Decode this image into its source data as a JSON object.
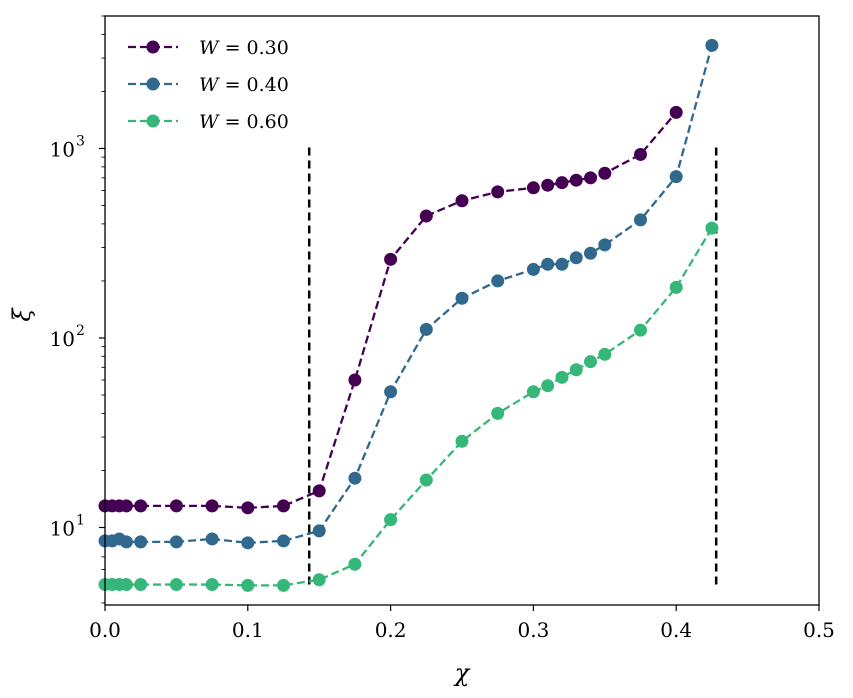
{
  "chart_data": {
    "type": "line",
    "xlabel": "χ",
    "ylabel": "ξ",
    "xlim": [
      0.0,
      0.5
    ],
    "ylim": [
      3.9,
      5000
    ],
    "yscale": "log",
    "grid": false,
    "legend_position": "top-left",
    "xticks": [
      {
        "value": 0.0,
        "label": "0.0"
      },
      {
        "value": 0.1,
        "label": "0.1"
      },
      {
        "value": 0.2,
        "label": "0.2"
      },
      {
        "value": 0.3,
        "label": "0.3"
      },
      {
        "value": 0.4,
        "label": "0.4"
      },
      {
        "value": 0.5,
        "label": "0.5"
      }
    ],
    "yticks": [
      {
        "value": 10,
        "base": "10",
        "exp": "1"
      },
      {
        "value": 100,
        "base": "10",
        "exp": "2"
      },
      {
        "value": 1000,
        "base": "10",
        "exp": "3"
      }
    ],
    "series": [
      {
        "name": "W = 0.30",
        "name_var": "W",
        "name_rest": " = 0.30",
        "color": "#440154",
        "x": [
          0.0,
          0.005,
          0.01,
          0.015,
          0.025,
          0.05,
          0.075,
          0.1,
          0.125,
          0.15,
          0.175,
          0.2,
          0.225,
          0.25,
          0.275,
          0.3,
          0.31,
          0.32,
          0.33,
          0.34,
          0.35,
          0.375,
          0.4
        ],
        "values": [
          13,
          13,
          13,
          13,
          13,
          13,
          13,
          12.7,
          13,
          15.6,
          60,
          260,
          440,
          530,
          590,
          620,
          640,
          660,
          680,
          700,
          740,
          930,
          1550
        ]
      },
      {
        "name": "W = 0.40",
        "name_var": "W",
        "name_rest": " = 0.40",
        "color": "#31688e",
        "x": [
          0.0,
          0.005,
          0.01,
          0.015,
          0.025,
          0.05,
          0.075,
          0.1,
          0.125,
          0.15,
          0.175,
          0.2,
          0.225,
          0.25,
          0.275,
          0.3,
          0.31,
          0.32,
          0.33,
          0.34,
          0.35,
          0.375,
          0.4,
          0.425
        ],
        "values": [
          8.5,
          8.5,
          8.7,
          8.4,
          8.4,
          8.4,
          8.7,
          8.3,
          8.5,
          9.6,
          18.2,
          52,
          111,
          162,
          200,
          230,
          245,
          245,
          265,
          280,
          310,
          420,
          710,
          3500
        ]
      },
      {
        "name": "W = 0.60",
        "name_var": "W",
        "name_rest": " = 0.60",
        "color": "#35b779",
        "x": [
          0.0,
          0.005,
          0.01,
          0.015,
          0.025,
          0.05,
          0.075,
          0.1,
          0.125,
          0.15,
          0.175,
          0.2,
          0.225,
          0.25,
          0.275,
          0.3,
          0.31,
          0.32,
          0.33,
          0.34,
          0.35,
          0.375,
          0.4,
          0.425
        ],
        "values": [
          5.0,
          5.0,
          5.0,
          5.0,
          5.0,
          5.0,
          5.0,
          4.95,
          4.95,
          5.3,
          6.4,
          11.0,
          17.8,
          28.5,
          40,
          52,
          56,
          62,
          68,
          75,
          82,
          110,
          185,
          380
        ]
      }
    ],
    "vertical_lines": [
      {
        "x": 0.143,
        "y_from": 5.0,
        "y_to": 1030
      },
      {
        "x": 0.428,
        "y_from": 5.0,
        "y_to": 1030
      }
    ]
  }
}
